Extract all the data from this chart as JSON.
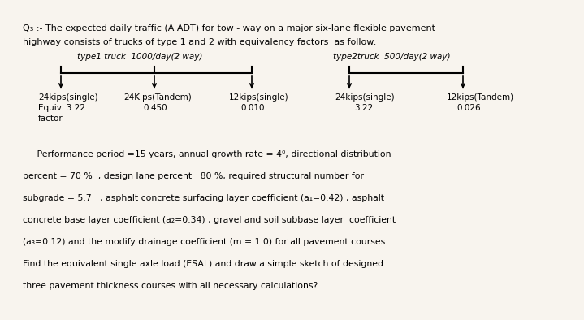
{
  "bg_color": "#f8f4ee",
  "title_line1": "Q₃ :- The expected daily traffic (A ADT) for tow - way on a major six-lane flexible pavement",
  "title_line2": "highway consists of trucks of type 1 and 2 with equivalency factors  as follow:",
  "type1_label": "type1 truck  1000/day(2 way)",
  "type2_label": "type2truck  500/day(2 way)",
  "truck1_axle1": "24kips(single)",
  "truck1_axle2": "24Kips(Tandem)",
  "truck1_axle3": "12kips(single)",
  "truck1_eq1": "Equiv. 3.22",
  "truck1_eq2": "0.450",
  "truck1_eq3": "0.010",
  "truck1_factor": "factor",
  "truck2_axle1": "24kips(single)",
  "truck2_axle2": "12kips(Tandem)",
  "truck2_eq1": "3.22",
  "truck2_eq2": "0.026",
  "para_line1": "     Performance period =15 years, annual growth rate = 4⁰, directional distribution",
  "para_line2": "percent = 70 %  , design lane percent   80 %, required structural number for",
  "para_line3": "subgrade = 5.7   , asphalt concrete surfacing layer coefficient (a₁=0.42) , asphalt",
  "para_line4": "concrete base layer coefficient (a₂=0.34) , gravel and soil subbase layer  coefficient",
  "para_line5": "(a₃=0.12) and the modify drainage coefficient (m = 1.0) for all pavement courses",
  "para_line6": "Find the equivalent single axle load (ESAL) and draw a simple sketch of designed",
  "para_line7": "three pavement thickness courses with all necessary calculations?"
}
